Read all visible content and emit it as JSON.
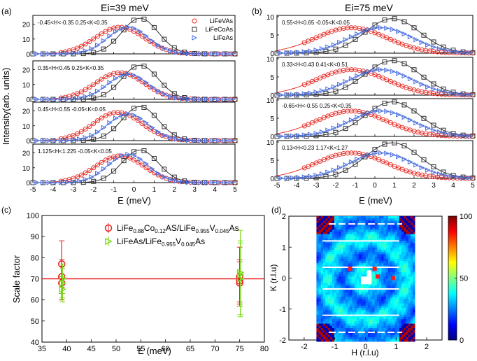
{
  "panel_labels": {
    "a": "(a)",
    "b": "(b)",
    "c": "(c)",
    "d": "(d)"
  },
  "figure_text": {
    "title_a": "Ei=39 meV",
    "title_b": "Ei=75 meV",
    "ylabel_ab": "Intensity(arb. units)",
    "xlabel_ab": "E (meV)",
    "c_legend1": "LiFe₀.₈₈Co₀.₁₂AS/LiFe₀.₉₅₅V₀.₀₄₅As",
    "c_legend1_parts": [
      "LiFe",
      "0.88",
      "Co",
      "0.12",
      "AS/LiFe",
      "0.955",
      "V",
      "0.045",
      "As"
    ],
    "c_legend2_parts": [
      "LiFeAs/LiFe",
      "0.955",
      "V",
      "0.045",
      "As"
    ]
  },
  "colors": {
    "LiFeVAs": "#e8302a",
    "LiFeCoAs": "#333333",
    "LiFeAs": "#4a6fe0",
    "green": "#7ddc1f",
    "red": "#e82020"
  },
  "chart_data": [
    {
      "id": "a",
      "type": "line",
      "title": "Ei=39 meV",
      "xlabel": "E (meV)",
      "ylabel": "Intensity(arb. units)",
      "xlim": [
        -5,
        5
      ],
      "xticks": [
        "-5",
        "-4",
        "-3",
        "-2",
        "-1",
        "0",
        "1",
        "2",
        "3",
        "4",
        "5"
      ],
      "legend": [
        "LiFeVAs",
        "LiFeCoAs",
        "LiFeAs"
      ],
      "subplots": [
        {
          "label": "-0.45<H<-0.35  0.25<K<0.35",
          "ylim": [
            0,
            25
          ],
          "yticks": [
            "0",
            "10",
            "20"
          ],
          "peaks": {
            "LiFeVAs": [
              -0.7,
              18,
              1.2
            ],
            "LiFeCoAs": [
              0.3,
              24,
              0.9
            ],
            "LiFeAs": [
              -0.3,
              18,
              1.0
            ]
          }
        },
        {
          "label": "0.35<H<0.45  0.25<K<0.35",
          "ylim": [
            0,
            25
          ],
          "yticks": [
            "0",
            "10",
            "20"
          ],
          "peaks": {
            "LiFeVAs": [
              -0.7,
              18,
              1.2
            ],
            "LiFeCoAs": [
              0.3,
              23,
              0.9
            ],
            "LiFeAs": [
              -0.3,
              17,
              1.0
            ]
          }
        },
        {
          "label": "0.45<H<0.55  -0.05<K<0.05",
          "ylim": [
            0,
            25
          ],
          "yticks": [
            "0",
            "10",
            "20"
          ],
          "peaks": {
            "LiFeVAs": [
              -0.8,
              19,
              1.2
            ],
            "LiFeCoAs": [
              0.3,
              23,
              0.9
            ],
            "LiFeAs": [
              -0.3,
              18,
              1.0
            ]
          }
        },
        {
          "label": "1.125<H<1.225  -0.05<K<0.05",
          "ylim": [
            0,
            25
          ],
          "yticks": [
            "0",
            "10",
            "20"
          ],
          "peaks": {
            "LiFeVAs": [
              -0.7,
              18,
              1.2
            ],
            "LiFeCoAs": [
              0.3,
              22,
              0.9
            ],
            "LiFeAs": [
              -0.3,
              19,
              1.0
            ]
          }
        }
      ]
    },
    {
      "id": "b",
      "type": "line",
      "title": "Ei=75 meV",
      "xlabel": "E (meV)",
      "xlim": [
        -5,
        5
      ],
      "xticks": [
        "-5",
        "-4",
        "-3",
        "-2",
        "-1",
        "0",
        "1",
        "2",
        "3",
        "4",
        "5"
      ],
      "subplots": [
        {
          "label": "0.55<H<0.65  -0.05<K<0.05",
          "ylim": [
            0,
            10
          ],
          "yticks": [
            "0",
            "5",
            "10"
          ],
          "peaks": {
            "LiFeVAs": [
              -1.2,
              7,
              1.8
            ],
            "LiFeCoAs": [
              0.9,
              9.5,
              1.4
            ],
            "LiFeAs": [
              0.3,
              7,
              1.6
            ]
          }
        },
        {
          "label": "0.33<H<0.43  0.41<K<0.51",
          "ylim": [
            0,
            10
          ],
          "yticks": [
            "0",
            "5",
            "10"
          ],
          "peaks": {
            "LiFeVAs": [
              -1.2,
              7,
              1.8
            ],
            "LiFeCoAs": [
              0.9,
              9.5,
              1.4
            ],
            "LiFeAs": [
              0.3,
              7,
              1.6
            ]
          }
        },
        {
          "label": "-0.65<H<-0.55  0.25<K<0.35",
          "ylim": [
            0,
            10
          ],
          "yticks": [
            "0",
            "5",
            "10"
          ],
          "peaks": {
            "LiFeVAs": [
              -1.2,
              7,
              1.8
            ],
            "LiFeCoAs": [
              0.9,
              9.5,
              1.4
            ],
            "LiFeAs": [
              0.3,
              7,
              1.6
            ]
          }
        },
        {
          "label": "0.13<H<0.23  1.17<K<1.27",
          "ylim": [
            0,
            10
          ],
          "yticks": [
            "0",
            "5",
            "10"
          ],
          "peaks": {
            "LiFeVAs": [
              -1.2,
              7,
              1.8
            ],
            "LiFeCoAs": [
              0.9,
              9.8,
              1.4
            ],
            "LiFeAs": [
              0.3,
              7,
              1.6
            ]
          }
        }
      ]
    },
    {
      "id": "c",
      "type": "scatter",
      "xlabel": "E (meV)",
      "ylabel": "Scale factor",
      "xlim": [
        35,
        80
      ],
      "ylim": [
        40,
        100
      ],
      "xticks": [
        "35",
        "40",
        "45",
        "50",
        "55",
        "60",
        "65",
        "70",
        "75",
        "80"
      ],
      "yticks": [
        "40",
        "50",
        "60",
        "70",
        "80",
        "90",
        "100"
      ],
      "hline": 70,
      "series": [
        {
          "name": "LiFe0.88Co0.12AS/LiFe0.955V0.045As",
          "x": [
            39,
            39,
            39,
            75,
            75,
            75
          ],
          "y": [
            77,
            71,
            68,
            71,
            69,
            68
          ],
          "err": [
            11,
            8,
            8,
            14,
            10,
            10
          ]
        },
        {
          "name": "LiFeAs/LiFe0.955V0.045As",
          "x": [
            39,
            39,
            39,
            75,
            75,
            75
          ],
          "y": [
            65,
            68,
            70,
            73,
            70,
            72
          ],
          "err": [
            6,
            7,
            7,
            20,
            18,
            15
          ]
        }
      ]
    },
    {
      "id": "d",
      "type": "heatmap",
      "xlabel": "H (r.l.u)",
      "ylabel": "K (r.l.u)",
      "xlim": [
        -2.5,
        2.5
      ],
      "ylim": [
        -2,
        2
      ],
      "xticks": [
        "-2",
        "-1",
        "0",
        "1",
        "2"
      ],
      "yticks": [
        "-2",
        "-1",
        "0",
        "1",
        "2"
      ],
      "colorbar": {
        "min": 0,
        "max": 100,
        "ticks": [
          "0",
          "50",
          "100"
        ]
      },
      "hot_spots": [
        [
          -0.5,
          0.3
        ],
        [
          0.3,
          0.3
        ],
        [
          0.4,
          0.05
        ],
        [
          0.9,
          0.0
        ]
      ]
    }
  ]
}
